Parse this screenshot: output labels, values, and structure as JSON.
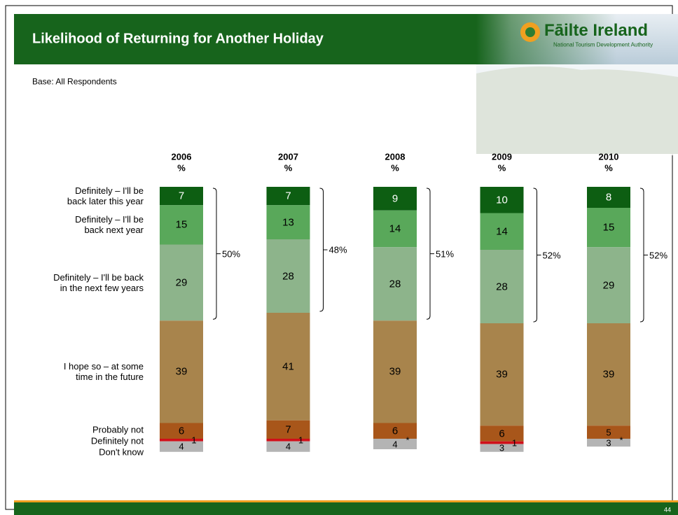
{
  "header": {
    "title": "Likelihood of Returning for Another Holiday",
    "logo": "Fāilte Ireland",
    "logo_subtitle": "National Tourism Development Authority",
    "base": "Base: All Respondents",
    "page_number": "44"
  },
  "chart_data": {
    "type": "stacked_bar",
    "unit_label": "%",
    "categories": [
      "2006",
      "2007",
      "2008",
      "2009",
      "2010"
    ],
    "series": [
      {
        "name": "Definitely – I'll be\nback later this year",
        "color": "#0d5e12",
        "text_color": "#ffffff",
        "values": [
          7,
          7,
          9,
          10,
          8
        ]
      },
      {
        "name": "Definitely – I'll be\nback next year",
        "color": "#59a85a",
        "text_color": "#000000",
        "values": [
          15,
          13,
          14,
          14,
          15
        ]
      },
      {
        "name": "Definitely – I'll be back\nin the next few years",
        "color": "#8db48b",
        "text_color": "#000000",
        "values": [
          29,
          28,
          28,
          28,
          29
        ]
      },
      {
        "name": "I hope so – at some\ntime in the future",
        "color": "#a8844c",
        "text_color": "#000000",
        "values": [
          39,
          41,
          39,
          39,
          39
        ]
      },
      {
        "name": "Probably not",
        "color": "#a8561a",
        "text_color": "#000000",
        "values": [
          6,
          7,
          6,
          6,
          5
        ]
      },
      {
        "name": "Definitely not",
        "color": "#d0101a",
        "text_color": "#000000",
        "values": [
          1,
          1,
          null,
          1,
          null
        ],
        "value_labels": [
          "1",
          "1",
          "*",
          "1",
          "*"
        ]
      },
      {
        "name": "Don't know",
        "color": "#b4b4b4",
        "text_color": "#000000",
        "values": [
          4,
          4,
          4,
          3,
          3
        ]
      }
    ],
    "bracket_values": [
      50,
      48,
      51,
      52,
      52
    ],
    "bracket_labels": [
      "50%",
      "48%",
      "51%",
      "52%",
      "52%"
    ]
  }
}
